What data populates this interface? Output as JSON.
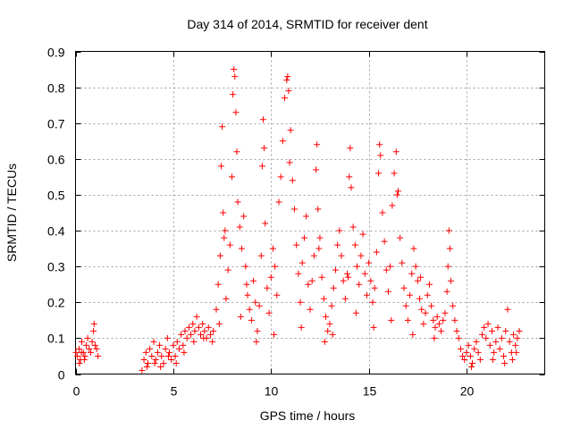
{
  "chart_data": {
    "type": "scatter",
    "title": "Day 314 of 2014, SRMTID for receiver dent",
    "xlabel": "GPS time / hours",
    "ylabel": "SRMTID / TECUs",
    "xlim": [
      0,
      24
    ],
    "ylim": [
      0,
      0.9
    ],
    "xticks": [
      0,
      5,
      10,
      15,
      20
    ],
    "xtick_labels": [
      "0",
      "5",
      "10",
      "15",
      "20"
    ],
    "yticks": [
      0,
      0.1,
      0.2,
      0.3,
      0.4,
      0.5,
      0.6,
      0.7,
      0.8,
      0.9
    ],
    "ytick_labels": [
      "0",
      "0.1",
      "0.2",
      "0.3",
      "0.4",
      "0.5",
      "0.6",
      "0.7",
      "0.8",
      "0.9"
    ],
    "grid": true,
    "marker": "+",
    "color": "#ff0000",
    "series": [
      {
        "name": "SRMTID",
        "points": [
          [
            0.02,
            0.06
          ],
          [
            0.1,
            0.05
          ],
          [
            0.18,
            0.07
          ],
          [
            0.25,
            0.04
          ],
          [
            0.32,
            0.09
          ],
          [
            0.4,
            0.06
          ],
          [
            0.48,
            0.05
          ],
          [
            0.55,
            0.08
          ],
          [
            0.62,
            0.1
          ],
          [
            0.7,
            0.07
          ],
          [
            0.78,
            0.06
          ],
          [
            0.85,
            0.09
          ],
          [
            0.92,
            0.12
          ],
          [
            1.0,
            0.08
          ],
          [
            1.08,
            0.07
          ],
          [
            1.15,
            0.05
          ],
          [
            0.2,
            0.03
          ],
          [
            0.45,
            0.04
          ],
          [
            0.95,
            0.14
          ],
          [
            0.3,
            0.06
          ],
          [
            3.4,
            0.01
          ],
          [
            3.5,
            0.04
          ],
          [
            3.6,
            0.06
          ],
          [
            3.7,
            0.03
          ],
          [
            3.8,
            0.07
          ],
          [
            3.9,
            0.05
          ],
          [
            4.0,
            0.09
          ],
          [
            4.1,
            0.04
          ],
          [
            4.2,
            0.06
          ],
          [
            4.3,
            0.08
          ],
          [
            4.4,
            0.05
          ],
          [
            4.5,
            0.03
          ],
          [
            4.6,
            0.07
          ],
          [
            4.7,
            0.1
          ],
          [
            4.8,
            0.06
          ],
          [
            4.9,
            0.04
          ],
          [
            5.0,
            0.08
          ],
          [
            5.1,
            0.05
          ],
          [
            5.2,
            0.09
          ],
          [
            5.3,
            0.07
          ],
          [
            5.4,
            0.11
          ],
          [
            5.5,
            0.08
          ],
          [
            5.6,
            0.12
          ],
          [
            5.7,
            0.1
          ],
          [
            5.8,
            0.13
          ],
          [
            5.9,
            0.11
          ],
          [
            6.0,
            0.14
          ],
          [
            6.1,
            0.12
          ],
          [
            6.2,
            0.16
          ],
          [
            6.3,
            0.13
          ],
          [
            6.4,
            0.11
          ],
          [
            6.5,
            0.14
          ],
          [
            6.6,
            0.12
          ],
          [
            6.7,
            0.1
          ],
          [
            6.8,
            0.13
          ],
          [
            6.9,
            0.11
          ],
          [
            7.0,
            0.09
          ],
          [
            7.05,
            0.12
          ],
          [
            3.65,
            0.02
          ],
          [
            4.05,
            0.03
          ],
          [
            4.35,
            0.02
          ],
          [
            4.75,
            0.05
          ],
          [
            5.15,
            0.03
          ],
          [
            5.55,
            0.06
          ],
          [
            6.05,
            0.09
          ],
          [
            6.55,
            0.1
          ],
          [
            7.2,
            0.18
          ],
          [
            7.3,
            0.25
          ],
          [
            7.4,
            0.33
          ],
          [
            7.45,
            0.58
          ],
          [
            7.5,
            0.69
          ],
          [
            7.55,
            0.45
          ],
          [
            7.6,
            0.38
          ],
          [
            7.7,
            0.21
          ],
          [
            7.8,
            0.29
          ],
          [
            7.9,
            0.36
          ],
          [
            8.0,
            0.55
          ],
          [
            8.05,
            0.78
          ],
          [
            8.1,
            0.85
          ],
          [
            8.15,
            0.83
          ],
          [
            8.2,
            0.73
          ],
          [
            8.25,
            0.62
          ],
          [
            8.3,
            0.48
          ],
          [
            8.4,
            0.41
          ],
          [
            8.5,
            0.35
          ],
          [
            8.6,
            0.44
          ],
          [
            8.7,
            0.3
          ],
          [
            8.8,
            0.22
          ],
          [
            8.9,
            0.18
          ],
          [
            9.0,
            0.15
          ],
          [
            9.1,
            0.26
          ],
          [
            9.2,
            0.2
          ],
          [
            9.3,
            0.12
          ],
          [
            9.4,
            0.19
          ],
          [
            9.5,
            0.33
          ],
          [
            9.55,
            0.58
          ],
          [
            9.6,
            0.71
          ],
          [
            9.65,
            0.63
          ],
          [
            9.7,
            0.42
          ],
          [
            9.8,
            0.24
          ],
          [
            9.9,
            0.17
          ],
          [
            10.0,
            0.27
          ],
          [
            10.1,
            0.35
          ],
          [
            10.2,
            0.3
          ],
          [
            10.3,
            0.22
          ],
          [
            10.4,
            0.48
          ],
          [
            10.5,
            0.55
          ],
          [
            10.6,
            0.65
          ],
          [
            10.7,
            0.77
          ],
          [
            10.8,
            0.82
          ],
          [
            10.85,
            0.83
          ],
          [
            10.9,
            0.79
          ],
          [
            11.0,
            0.68
          ],
          [
            11.1,
            0.54
          ],
          [
            11.2,
            0.46
          ],
          [
            11.3,
            0.36
          ],
          [
            11.4,
            0.28
          ],
          [
            11.5,
            0.2
          ],
          [
            11.6,
            0.31
          ],
          [
            11.7,
            0.38
          ],
          [
            11.8,
            0.44
          ],
          [
            11.9,
            0.25
          ],
          [
            12.0,
            0.18
          ],
          [
            12.1,
            0.26
          ],
          [
            12.2,
            0.33
          ],
          [
            12.3,
            0.57
          ],
          [
            12.35,
            0.64
          ],
          [
            12.4,
            0.46
          ],
          [
            12.5,
            0.38
          ],
          [
            12.6,
            0.27
          ],
          [
            12.7,
            0.21
          ],
          [
            12.8,
            0.16
          ],
          [
            12.9,
            0.12
          ],
          [
            13.0,
            0.14
          ],
          [
            13.1,
            0.19
          ],
          [
            13.2,
            0.24
          ],
          [
            13.3,
            0.29
          ],
          [
            13.4,
            0.36
          ],
          [
            13.5,
            0.4
          ],
          [
            13.6,
            0.33
          ],
          [
            13.7,
            0.26
          ],
          [
            13.8,
            0.21
          ],
          [
            13.9,
            0.28
          ],
          [
            14.0,
            0.55
          ],
          [
            14.05,
            0.63
          ],
          [
            14.1,
            0.52
          ],
          [
            14.2,
            0.41
          ],
          [
            14.3,
            0.36
          ],
          [
            14.4,
            0.3
          ],
          [
            14.5,
            0.25
          ],
          [
            14.6,
            0.33
          ],
          [
            14.7,
            0.39
          ],
          [
            14.8,
            0.28
          ],
          [
            14.9,
            0.22
          ],
          [
            15.0,
            0.31
          ],
          [
            15.1,
            0.26
          ],
          [
            15.2,
            0.2
          ],
          [
            15.3,
            0.24
          ],
          [
            15.4,
            0.34
          ],
          [
            15.5,
            0.56
          ],
          [
            15.55,
            0.64
          ],
          [
            15.6,
            0.61
          ],
          [
            15.7,
            0.45
          ],
          [
            15.8,
            0.37
          ],
          [
            15.9,
            0.29
          ],
          [
            16.0,
            0.23
          ],
          [
            16.1,
            0.3
          ],
          [
            16.2,
            0.47
          ],
          [
            16.3,
            0.56
          ],
          [
            16.4,
            0.62
          ],
          [
            16.5,
            0.51
          ],
          [
            16.6,
            0.38
          ],
          [
            16.7,
            0.31
          ],
          [
            16.8,
            0.24
          ],
          [
            16.9,
            0.19
          ],
          [
            17.0,
            0.15
          ],
          [
            17.1,
            0.22
          ],
          [
            17.2,
            0.28
          ],
          [
            17.3,
            0.35
          ],
          [
            17.4,
            0.3
          ],
          [
            17.5,
            0.26
          ],
          [
            17.6,
            0.21
          ],
          [
            17.7,
            0.18
          ],
          [
            17.8,
            0.14
          ],
          [
            17.9,
            0.17
          ],
          [
            18.0,
            0.22
          ],
          [
            18.1,
            0.25
          ],
          [
            18.2,
            0.19
          ],
          [
            18.3,
            0.15
          ],
          [
            18.4,
            0.13
          ],
          [
            18.5,
            0.16
          ],
          [
            18.6,
            0.14
          ],
          [
            18.7,
            0.12
          ],
          [
            18.8,
            0.15
          ],
          [
            18.9,
            0.17
          ],
          [
            19.0,
            0.23
          ],
          [
            19.05,
            0.3
          ],
          [
            19.1,
            0.4
          ],
          [
            19.15,
            0.35
          ],
          [
            19.2,
            0.26
          ],
          [
            19.3,
            0.19
          ],
          [
            19.4,
            0.15
          ],
          [
            19.5,
            0.12
          ],
          [
            7.35,
            0.14
          ],
          [
            8.45,
            0.16
          ],
          [
            9.25,
            0.09
          ],
          [
            10.15,
            0.11
          ],
          [
            11.55,
            0.13
          ],
          [
            12.75,
            0.09
          ],
          [
            13.15,
            0.11
          ],
          [
            14.35,
            0.17
          ],
          [
            15.25,
            0.13
          ],
          [
            16.15,
            0.15
          ],
          [
            17.25,
            0.11
          ],
          [
            18.35,
            0.1
          ],
          [
            7.65,
            0.4
          ],
          [
            8.75,
            0.25
          ],
          [
            10.95,
            0.59
          ],
          [
            12.45,
            0.35
          ],
          [
            13.95,
            0.27
          ],
          [
            16.45,
            0.5
          ],
          [
            17.65,
            0.27
          ],
          [
            19.6,
            0.1
          ],
          [
            19.7,
            0.07
          ],
          [
            19.8,
            0.05
          ],
          [
            19.9,
            0.04
          ],
          [
            20.0,
            0.06
          ],
          [
            20.1,
            0.08
          ],
          [
            20.2,
            0.05
          ],
          [
            20.3,
            0.03
          ],
          [
            20.4,
            0.07
          ],
          [
            20.5,
            0.09
          ],
          [
            20.6,
            0.06
          ],
          [
            20.7,
            0.04
          ],
          [
            20.8,
            0.11
          ],
          [
            20.9,
            0.13
          ],
          [
            21.0,
            0.1
          ],
          [
            21.1,
            0.14
          ],
          [
            21.2,
            0.08
          ],
          [
            21.3,
            0.12
          ],
          [
            21.4,
            0.06
          ],
          [
            21.5,
            0.09
          ],
          [
            21.6,
            0.13
          ],
          [
            21.7,
            0.07
          ],
          [
            21.8,
            0.1
          ],
          [
            21.9,
            0.05
          ],
          [
            22.0,
            0.12
          ],
          [
            22.1,
            0.18
          ],
          [
            22.2,
            0.09
          ],
          [
            22.3,
            0.06
          ],
          [
            22.4,
            0.11
          ],
          [
            22.5,
            0.08
          ],
          [
            22.6,
            0.1
          ],
          [
            22.7,
            0.12
          ],
          [
            20.25,
            0.02
          ],
          [
            21.35,
            0.04
          ],
          [
            21.95,
            0.03
          ],
          [
            22.35,
            0.04
          ],
          [
            22.55,
            0.06
          ]
        ]
      }
    ]
  }
}
